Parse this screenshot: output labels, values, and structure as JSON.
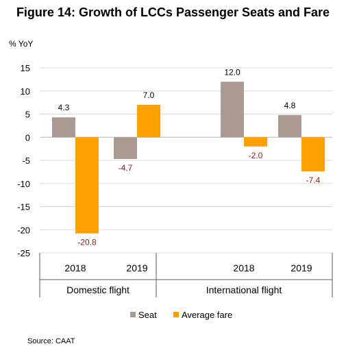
{
  "chart_data": {
    "type": "bar",
    "title": "Figure 14:  Growth of LCCs Passenger Seats  and  Fare",
    "ylabel": "% YoY",
    "ylim": [
      -25,
      15
    ],
    "yticks": [
      15,
      10,
      5,
      0,
      -5,
      -10,
      -15,
      -20,
      -25
    ],
    "groups": [
      {
        "name": "Domestic flight",
        "categories": [
          "2018",
          "2019"
        ]
      },
      {
        "name": "International flight",
        "categories": [
          "2018",
          "2019"
        ]
      }
    ],
    "series": [
      {
        "name": "Seat",
        "color": "#ab9a93",
        "values": [
          4.3,
          -4.7,
          12.0,
          4.8
        ],
        "labels": [
          "4.3",
          "-4.7",
          "12.0",
          "4.8"
        ]
      },
      {
        "name": "Average fare",
        "color": "#ff9f00",
        "values": [
          -20.8,
          7.0,
          -2.0,
          -7.4
        ],
        "labels": [
          "-20.8",
          "7.0",
          "-2.0",
          "-7.4"
        ]
      }
    ],
    "grid": true,
    "legend": "bottom",
    "positive_label_color": "#000000",
    "negative_label_color": "#8b1a1a"
  },
  "source": "Source: CAAT"
}
